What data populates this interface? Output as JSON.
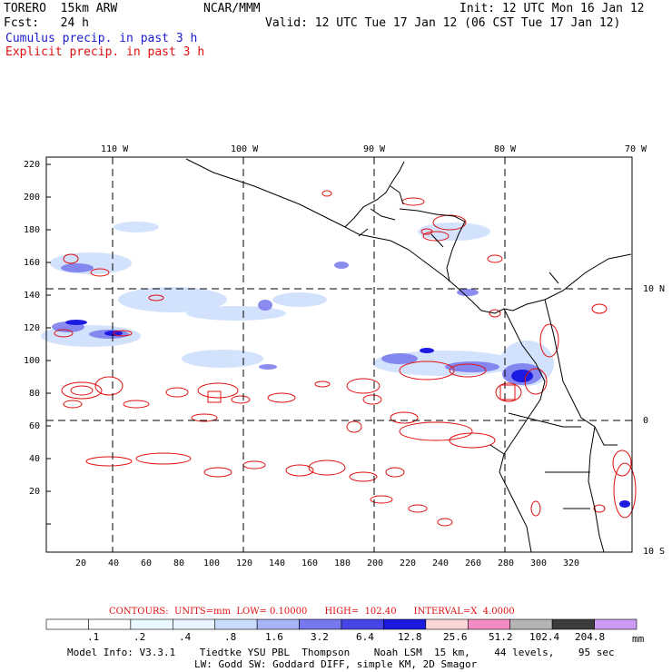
{
  "header": {
    "model": "TORERO  15km ARW",
    "org": "NCAR/MMM",
    "init": "Init: 12 UTC Mon 16 Jan 12",
    "fcst": "Fcst:   24 h",
    "valid": "Valid: 12 UTC Tue 17 Jan 12 (06 CST Tue 17 Jan 12)",
    "cumulus_label": "Cumulus precip. in past 3 h",
    "explicit_label": "Explicit precip. in past 3 h"
  },
  "map": {
    "lon_labels": [
      "110 W",
      "100 W",
      "90 W",
      "80 W",
      "70 W"
    ],
    "lat_labels": [
      "10 N",
      "0",
      "10 S"
    ],
    "y_ticks": [
      "220",
      "200",
      "180",
      "160",
      "140",
      "120",
      "100",
      "80",
      "60",
      "40",
      "20"
    ],
    "x_ticks": [
      "20",
      "40",
      "60",
      "80",
      "100",
      "120",
      "140",
      "160",
      "180",
      "200",
      "220",
      "240",
      "260",
      "280",
      "300",
      "320"
    ],
    "colors": {
      "cumulus": "#2323e0",
      "explicit": "#e01010",
      "border": "#000000"
    }
  },
  "footer": {
    "contours_text": "CONTOURS:  UNITS=mm  LOW= 0.10000      HIGH=  102.40      INTERVAL=X  4.0000",
    "scale_values": [
      ".1",
      ".2",
      ".4",
      ".8",
      "1.6",
      "3.2",
      "6.4",
      "12.8",
      "25.6",
      "51.2",
      "102.4",
      "204.8"
    ],
    "scale_unit": "mm",
    "scale_colors": [
      "#ffffff",
      "#ffffff",
      "#eaf8ff",
      "#e8f4ff",
      "#c9dcfc",
      "#a8b4f6",
      "#7878ee",
      "#4646e6",
      "#1a1ae0",
      "#fbd6d6",
      "#f48cc4",
      "#b4b4b4",
      "#3c3c3c",
      "#cc9cf4"
    ],
    "model_info": "Model Info: V3.3.1    Tiedtke YSU PBL  Thompson    Noah LSM  15 km,    44 levels,    95 sec",
    "model_info2": "LW: Godd SW: Goddard DIFF, simple KM, 2D Smagor"
  }
}
